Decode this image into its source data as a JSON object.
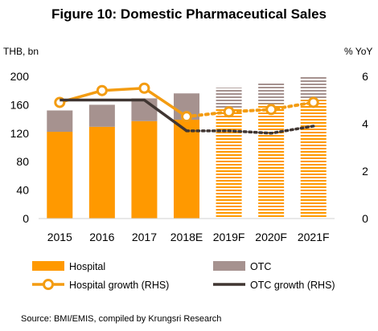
{
  "chart_data": {
    "type": "bar",
    "title": "Figure 10: Domestic Pharmaceutical Sales",
    "left_axis_label": "THB, bn",
    "right_axis_label": "% YoY",
    "categories": [
      "2015",
      "2016",
      "2017",
      "2018E",
      "2019F",
      "2020F",
      "2021F"
    ],
    "ylim_left": [
      0,
      200
    ],
    "yticks_left": [
      "0",
      "40",
      "80",
      "120",
      "160",
      "200"
    ],
    "ylim_right": [
      0,
      6
    ],
    "yticks_right": [
      "0",
      "2",
      "4",
      "6"
    ],
    "stacked_series": [
      {
        "name": "Hospital",
        "values": [
          122,
          129,
          137,
          139,
          155,
          161,
          167
        ],
        "color": "#FF9900"
      },
      {
        "name": "OTC",
        "values": [
          30,
          31,
          32,
          37,
          29,
          31,
          33
        ],
        "color": "#A6928F"
      }
    ],
    "line_series": [
      {
        "name": "Hospital growth (RHS)",
        "values": [
          4.9,
          5.4,
          5.5,
          4.3,
          4.5,
          4.6,
          4.9
        ],
        "color": "#F39C12"
      },
      {
        "name": "OTC growth (RHS)",
        "values": [
          5.0,
          5.0,
          5.0,
          3.7,
          3.7,
          3.6,
          3.9
        ],
        "color": "#403632"
      }
    ],
    "forecast_start_index": 4,
    "legend": [
      {
        "label": "Hospital",
        "kind": "bar",
        "color": "#FF9900"
      },
      {
        "label": "OTC",
        "kind": "bar",
        "color": "#A6928F"
      },
      {
        "label": "Hospital growth (RHS)",
        "kind": "line-marker",
        "color": "#F39C12"
      },
      {
        "label": "OTC growth (RHS)",
        "kind": "line",
        "color": "#403632"
      }
    ],
    "source": "Source: BMI/EMIS,  compiled by Krungsri Research"
  }
}
